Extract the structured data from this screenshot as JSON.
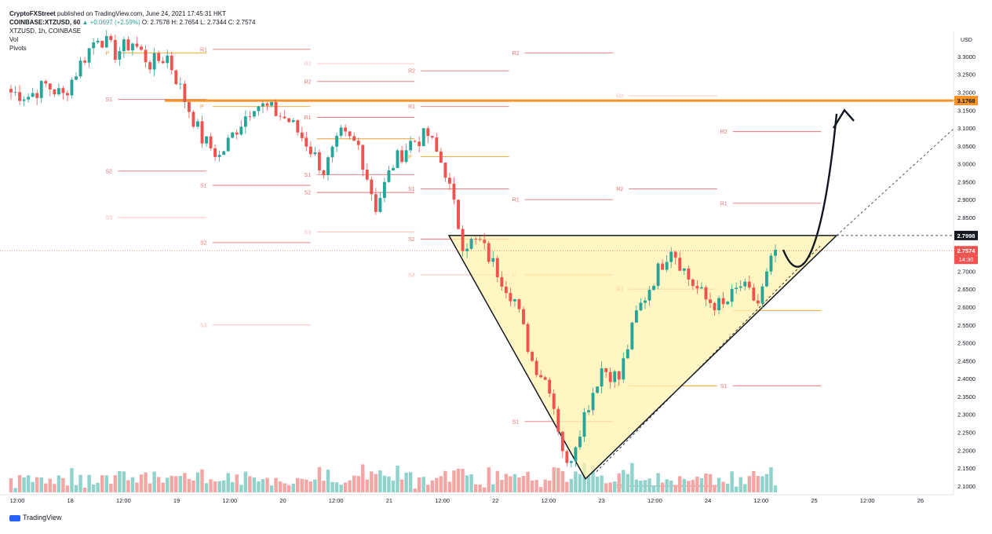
{
  "header": {
    "publisher": "CryptoFXStreet",
    "published_text": "published on TradingView.com, June 24, 2021 17:45:31 HKT",
    "symbol_line": "COINBASE:XTZUSD, 60",
    "change": "▲ +0.0697 (+2.59%)",
    "ohlc": "O: 2.7578 H: 2.7654 L: 2.7344 C: 2.7574",
    "legend_title": "XTZUSD, 1h, COINBASE",
    "indicators": [
      "Vol",
      "Pivots"
    ]
  },
  "footer": {
    "brand": "TradingView"
  },
  "colors": {
    "up": "#26a69a",
    "down": "#ef5350",
    "vol_up": "#8fd3cc",
    "vol_down": "#f4a6a4",
    "resistance": "#f5922a",
    "triangle_fill": "#fff3b0",
    "pivot": "#f0a030"
  },
  "chart_data": {
    "type": "candlestick",
    "symbol": "XTZUSD",
    "interval": "1h",
    "ylim": [
      2.08,
      3.37
    ],
    "y_ticks": [
      "3.3000",
      "3.2500",
      "3.2000",
      "3.1500",
      "3.1000",
      "3.0500",
      "3.0000",
      "2.9500",
      "2.9000",
      "2.8500",
      "2.8000",
      "2.7500",
      "2.7000",
      "2.6500",
      "2.6000",
      "2.5500",
      "2.5000",
      "2.4500",
      "2.4000",
      "2.3500",
      "2.3000",
      "2.2500",
      "2.2000",
      "2.1500",
      "2.1000"
    ],
    "x_ticks": [
      "12:00",
      "18",
      "12:00",
      "19",
      "12:00",
      "20",
      "12:00",
      "21",
      "12:00",
      "22",
      "12:00",
      "23",
      "12:00",
      "24",
      "12:00",
      "25",
      "12:00",
      "26"
    ],
    "currency_label": "USD",
    "price_labels": [
      {
        "value": 3.1768,
        "text": "3.1768",
        "style": "resistance"
      },
      {
        "value": 2.7998,
        "text": "2.7998",
        "style": "dark"
      },
      {
        "value": 2.7574,
        "text": "2.7574",
        "style": "last"
      }
    ],
    "countdown": "14:30",
    "resistance_level": 3.1768,
    "neckline_level": 2.7998,
    "candle_anchors": [
      [
        0,
        3.2
      ],
      [
        2,
        3.19
      ],
      [
        4,
        3.22
      ],
      [
        6,
        3.19
      ],
      [
        8,
        3.28
      ],
      [
        10,
        3.36
      ],
      [
        12,
        3.31
      ],
      [
        14,
        3.34
      ],
      [
        16,
        3.28
      ],
      [
        18,
        3.3
      ],
      [
        20,
        3.18
      ],
      [
        22,
        3.07
      ],
      [
        24,
        3.02
      ],
      [
        26,
        3.1
      ],
      [
        28,
        3.17
      ],
      [
        30,
        3.15
      ],
      [
        32,
        3.12
      ],
      [
        34,
        3.06
      ],
      [
        36,
        2.98
      ],
      [
        38,
        3.08
      ],
      [
        40,
        3.05
      ],
      [
        42,
        2.88
      ],
      [
        44,
        3.0
      ],
      [
        46,
        3.06
      ],
      [
        48,
        3.08
      ],
      [
        50,
        2.98
      ],
      [
        52,
        2.78
      ],
      [
        54,
        2.78
      ],
      [
        56,
        2.7
      ],
      [
        58,
        2.62
      ],
      [
        60,
        2.45
      ],
      [
        62,
        2.38
      ],
      [
        64,
        2.15
      ],
      [
        66,
        2.3
      ],
      [
        68,
        2.43
      ],
      [
        70,
        2.4
      ],
      [
        72,
        2.58
      ],
      [
        74,
        2.68
      ],
      [
        76,
        2.77
      ],
      [
        78,
        2.68
      ],
      [
        80,
        2.62
      ],
      [
        82,
        2.6
      ],
      [
        84,
        2.66
      ],
      [
        86,
        2.61
      ],
      [
        88,
        2.76
      ]
    ],
    "pivots": [
      {
        "label": "R1",
        "value": 3.32,
        "from": 0.2,
        "to": 0.32,
        "style": "r"
      },
      {
        "label": "P",
        "value": 3.31,
        "from": 0.1,
        "to": 0.21,
        "style": "p"
      },
      {
        "label": "S1",
        "value": 3.18,
        "from": 0.1,
        "to": 0.21,
        "style": "s"
      },
      {
        "label": "S2",
        "value": 2.98,
        "from": 0.1,
        "to": 0.21,
        "style": "s"
      },
      {
        "label": "S3",
        "value": 2.85,
        "from": 0.1,
        "to": 0.21,
        "style": "s3"
      },
      {
        "label": "R3",
        "value": 3.28,
        "from": 0.31,
        "to": 0.43,
        "style": "r3"
      },
      {
        "label": "R2",
        "value": 3.23,
        "from": 0.31,
        "to": 0.43,
        "style": "r"
      },
      {
        "label": "P",
        "value": 3.16,
        "from": 0.2,
        "to": 0.32,
        "style": "p"
      },
      {
        "label": "R1",
        "value": 3.13,
        "from": 0.31,
        "to": 0.43,
        "style": "r"
      },
      {
        "label": "S1",
        "value": 2.94,
        "from": 0.2,
        "to": 0.32,
        "style": "s"
      },
      {
        "label": "S2",
        "value": 2.78,
        "from": 0.2,
        "to": 0.32,
        "style": "s"
      },
      {
        "label": "S3",
        "value": 2.55,
        "from": 0.2,
        "to": 0.32,
        "style": "s3"
      },
      {
        "label": "P",
        "value": 3.07,
        "from": 0.31,
        "to": 0.43,
        "style": "p"
      },
      {
        "label": "S1",
        "value": 2.97,
        "from": 0.31,
        "to": 0.43,
        "style": "s"
      },
      {
        "label": "S2",
        "value": 2.92,
        "from": 0.31,
        "to": 0.43,
        "style": "s"
      },
      {
        "label": "S3",
        "value": 2.81,
        "from": 0.31,
        "to": 0.43,
        "style": "s3"
      },
      {
        "label": "R2",
        "value": 3.26,
        "from": 0.42,
        "to": 0.53,
        "style": "r"
      },
      {
        "label": "R1",
        "value": 3.16,
        "from": 0.42,
        "to": 0.53,
        "style": "r"
      },
      {
        "label": "P",
        "value": 3.02,
        "from": 0.42,
        "to": 0.53,
        "style": "p"
      },
      {
        "label": "S1",
        "value": 2.93,
        "from": 0.42,
        "to": 0.53,
        "style": "s"
      },
      {
        "label": "S2",
        "value": 2.79,
        "from": 0.42,
        "to": 0.53,
        "style": "s"
      },
      {
        "label": "S3",
        "value": 2.69,
        "from": 0.42,
        "to": 0.53,
        "style": "s3"
      },
      {
        "label": "R2",
        "value": 3.31,
        "from": 0.53,
        "to": 0.64,
        "style": "r"
      },
      {
        "label": "R1",
        "value": 2.9,
        "from": 0.53,
        "to": 0.64,
        "style": "r"
      },
      {
        "label": "P",
        "value": 2.69,
        "from": 0.53,
        "to": 0.64,
        "style": "p"
      },
      {
        "label": "S1",
        "value": 2.28,
        "from": 0.53,
        "to": 0.64,
        "style": "s"
      },
      {
        "label": "R3",
        "value": 3.19,
        "from": 0.64,
        "to": 0.75,
        "style": "r3"
      },
      {
        "label": "R2",
        "value": 2.93,
        "from": 0.64,
        "to": 0.75,
        "style": "r"
      },
      {
        "label": "R1",
        "value": 2.65,
        "from": 0.64,
        "to": 0.75,
        "style": "r"
      },
      {
        "label": "P",
        "value": 2.38,
        "from": 0.64,
        "to": 0.75,
        "style": "p"
      },
      {
        "label": "S1",
        "value": 2.1,
        "from": 0.64,
        "to": 0.75,
        "style": "s"
      },
      {
        "label": "R2",
        "value": 3.09,
        "from": 0.75,
        "to": 0.86,
        "style": "r"
      },
      {
        "label": "R1",
        "value": 2.89,
        "from": 0.75,
        "to": 0.86,
        "style": "r"
      },
      {
        "label": "P",
        "value": 2.59,
        "from": 0.75,
        "to": 0.86,
        "style": "p"
      },
      {
        "label": "S1",
        "value": 2.38,
        "from": 0.75,
        "to": 0.86,
        "style": "s"
      }
    ],
    "triangle": {
      "apex_value": 2.12,
      "top_left_value": 2.7998,
      "top_right_value": 2.7998
    }
  }
}
